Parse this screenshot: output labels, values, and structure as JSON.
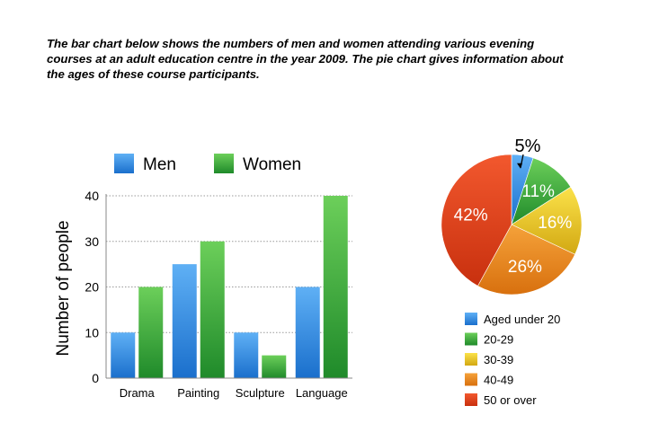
{
  "caption_lines": [
    "The bar chart below shows the numbers of men and women attending various evening",
    "courses at an adult education centre in the year 2009. The pie chart gives information about",
    "the ages of these course participants."
  ],
  "chart_data": [
    {
      "type": "bar",
      "categories": [
        "Drama",
        "Painting",
        "Sculpture",
        "Language"
      ],
      "series": [
        {
          "name": "Men",
          "values": [
            10,
            25,
            10,
            20
          ],
          "color": "#2f8ae0"
        },
        {
          "name": "Women",
          "values": [
            20,
            30,
            5,
            40
          ],
          "color": "#34a838"
        }
      ],
      "ylabel": "Number of people",
      "xlabel": "",
      "ylim": [
        0,
        40
      ],
      "yticks": [
        0,
        10,
        20,
        30,
        40
      ],
      "grid": true,
      "legend": "top"
    },
    {
      "type": "pie",
      "categories": [
        "Aged under 20",
        "20-29",
        "30-39",
        "40-49",
        "50 or over"
      ],
      "values": [
        5,
        11,
        16,
        26,
        42
      ],
      "labels": [
        "5%",
        "11%",
        "16%",
        "26%",
        "42%"
      ],
      "colors": [
        "#2f8ae0",
        "#34a838",
        "#e8c41c",
        "#ec8a1e",
        "#e8401c"
      ],
      "legend": "bottom"
    }
  ]
}
